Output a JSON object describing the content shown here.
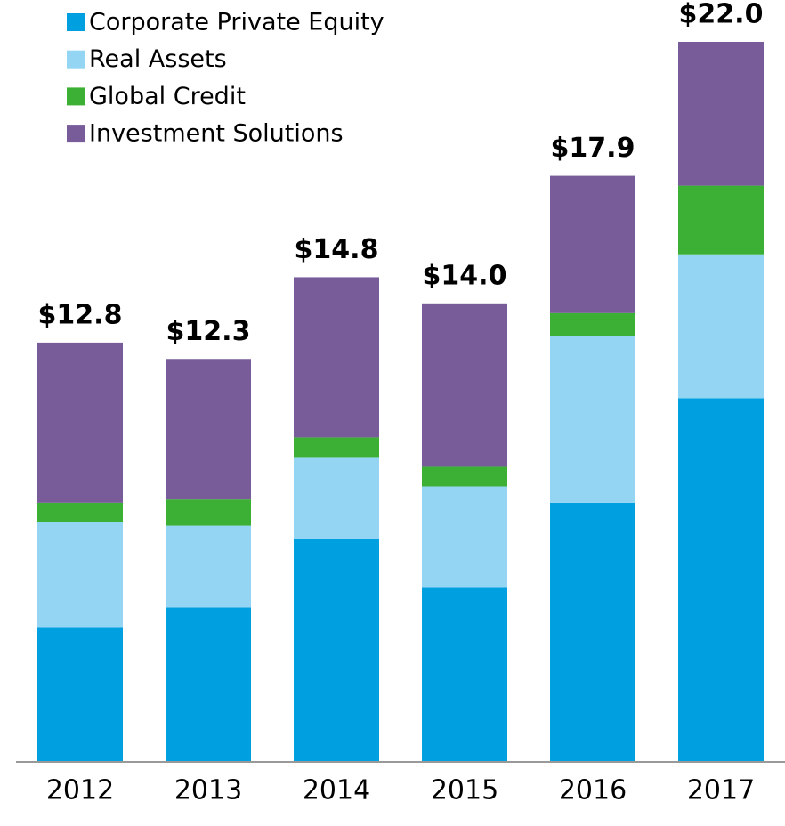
{
  "chart_data": {
    "type": "stacked_bar",
    "categories": [
      "2012",
      "2013",
      "2014",
      "2015",
      "2016",
      "2017"
    ],
    "series": [
      {
        "name": "Corporate Private Equity",
        "color": "#00a0e0",
        "values": [
          4.1,
          4.7,
          6.8,
          5.3,
          7.9,
          11.1
        ]
      },
      {
        "name": "Real Assets",
        "color": "#93d5f2",
        "values": [
          3.2,
          2.5,
          2.5,
          3.1,
          5.1,
          4.4
        ]
      },
      {
        "name": "Global Credit",
        "color": "#3cb034",
        "values": [
          0.6,
          0.8,
          0.6,
          0.6,
          0.7,
          2.1
        ]
      },
      {
        "name": "Investment Solutions",
        "color": "#775c99",
        "values": [
          4.9,
          4.3,
          4.9,
          5.0,
          4.2,
          4.4
        ]
      }
    ],
    "totals": [
      12.8,
      12.3,
      14.8,
      14.0,
      17.9,
      22.0
    ],
    "total_labels": [
      "$12.8",
      "$12.3",
      "$14.8",
      "$14.0",
      "$17.9",
      "$22.0"
    ],
    "legend": "top-left"
  }
}
